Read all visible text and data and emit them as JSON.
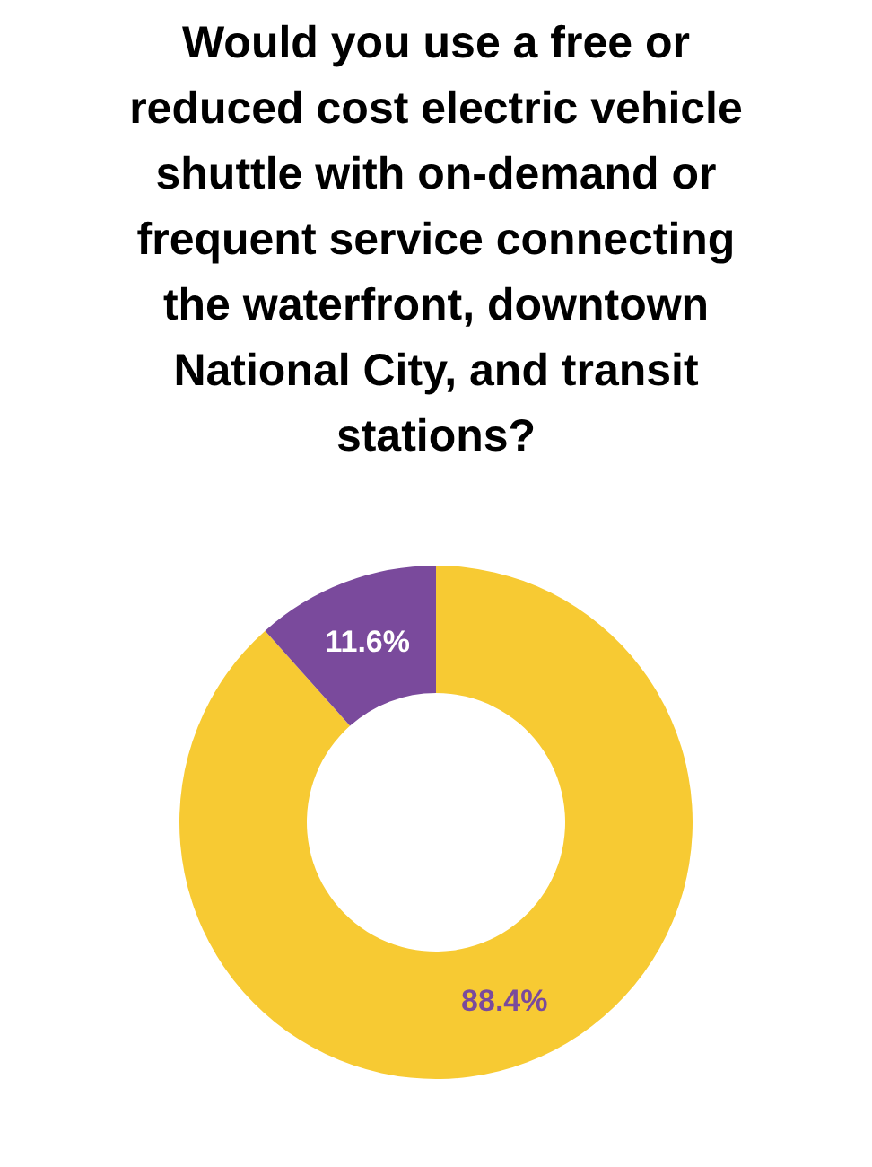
{
  "chart_data": {
    "type": "donut",
    "title": "Would you use a free or reduced cost electric vehicle shuttle with on-demand or frequent service connecting the waterfront, downtown National City, and transit stations?",
    "categories": [
      null,
      null
    ],
    "values": [
      88.4,
      11.6
    ],
    "colors": [
      "#f7ca33",
      "#7a4a9c"
    ],
    "value_labels": [
      "88.4%",
      "11.6%"
    ],
    "legend": false
  }
}
